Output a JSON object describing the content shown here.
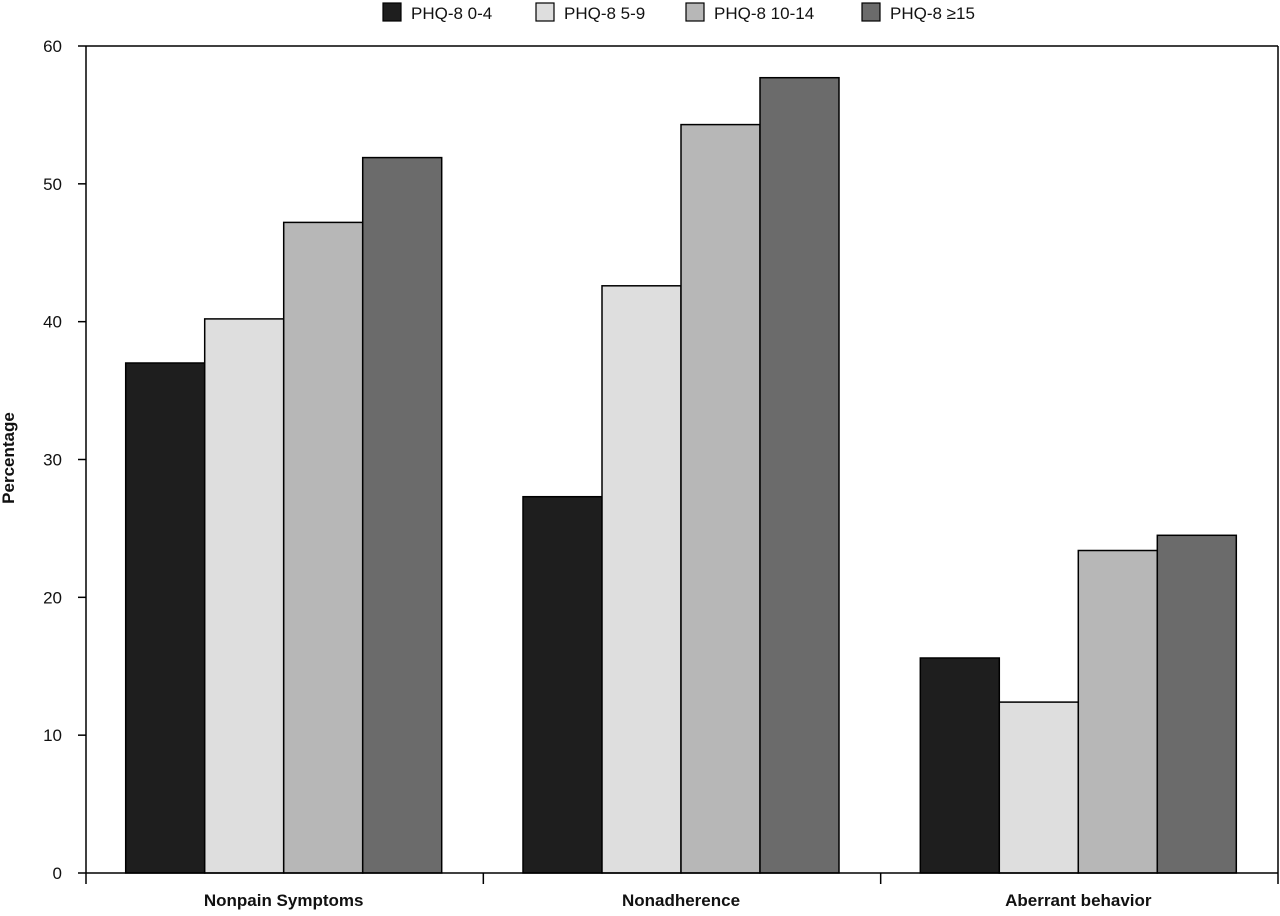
{
  "chart_data": {
    "type": "bar",
    "title": "",
    "xlabel": "",
    "ylabel": "Percentage",
    "ylim": [
      0,
      60
    ],
    "yticks": [
      0,
      10,
      20,
      30,
      40,
      50,
      60
    ],
    "grid": false,
    "legend_position": "top",
    "categories": [
      "Nonpain Symptoms",
      "Nonadherence",
      "Aberrant behavior"
    ],
    "series": [
      {
        "name": "PHQ-8 0-4",
        "color": "#1e1e1e",
        "values": [
          37.0,
          27.3,
          15.6
        ]
      },
      {
        "name": "PHQ-8 5-9",
        "color": "#dedede",
        "values": [
          40.2,
          42.6,
          12.4
        ]
      },
      {
        "name": "PHQ-8 10-14",
        "color": "#b7b7b7",
        "values": [
          47.2,
          54.3,
          23.4
        ]
      },
      {
        "name": "PHQ-8 ≥15",
        "color": "#6b6b6b",
        "values": [
          51.9,
          57.7,
          24.5
        ]
      }
    ]
  }
}
